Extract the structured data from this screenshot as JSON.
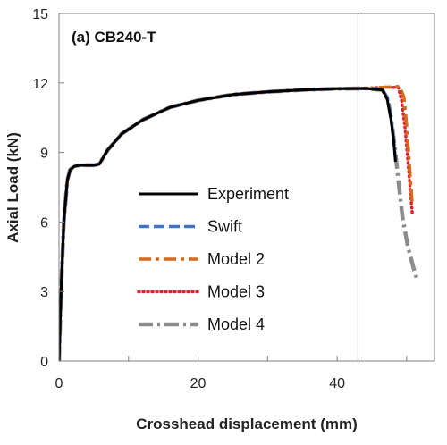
{
  "chart_data": {
    "type": "line",
    "title": "(a) CB240-T",
    "xlabel": "Crosshead displacement (mm)",
    "ylabel": "Axial Load (kN)",
    "xlim": [
      0,
      54
    ],
    "ylim": [
      0,
      15
    ],
    "xticks": [
      0,
      20,
      40
    ],
    "yticks": [
      0,
      3,
      6,
      9,
      12,
      15
    ],
    "grid": false,
    "legend_position": "bottom-center",
    "reference_line": {
      "x": 43,
      "orientation": "vertical",
      "color": "#000000"
    },
    "series": [
      {
        "name": "Experiment",
        "color": "#000000",
        "style": "solid",
        "x": [
          0,
          0.3,
          0.7,
          1.2,
          1.6,
          2.2,
          3.0,
          4.0,
          5.0,
          5.8,
          7.0,
          9.0,
          12.0,
          16.0,
          20.0,
          25.0,
          30.0,
          35.0,
          40.0,
          44.0,
          46.5,
          47.2,
          47.7,
          48.1,
          48.4
        ],
        "y": [
          0,
          3.0,
          6.0,
          7.8,
          8.25,
          8.4,
          8.45,
          8.45,
          8.45,
          8.5,
          9.1,
          9.8,
          10.4,
          10.95,
          11.25,
          11.5,
          11.62,
          11.7,
          11.75,
          11.76,
          11.7,
          11.3,
          10.5,
          9.6,
          8.6
        ]
      },
      {
        "name": "Swift",
        "color": "#4472c4",
        "style": "dashed",
        "x": [
          0,
          0.3,
          0.7,
          1.2,
          1.6,
          2.2,
          3.0,
          4.0,
          5.0,
          5.8,
          7.0,
          9.0,
          12.0,
          16.0,
          20.0,
          25.0,
          30.0,
          35.0,
          40.0,
          44.0,
          46.5,
          47.2,
          47.7,
          48.1,
          48.4
        ],
        "y": [
          0,
          3.0,
          6.0,
          7.8,
          8.25,
          8.4,
          8.45,
          8.45,
          8.45,
          8.5,
          9.1,
          9.8,
          10.4,
          10.95,
          11.25,
          11.5,
          11.62,
          11.7,
          11.75,
          11.76,
          11.72,
          11.4,
          10.6,
          9.7,
          8.7
        ]
      },
      {
        "name": "Model 2",
        "color": "#d46a1e",
        "style": "dashdot",
        "x": [
          0,
          0.3,
          0.7,
          1.2,
          1.6,
          2.2,
          3.0,
          4.0,
          5.0,
          5.8,
          7.0,
          9.0,
          12.0,
          16.0,
          20.0,
          25.0,
          30.0,
          35.0,
          40.0,
          44.0,
          47.0,
          49.0,
          49.6,
          50.0,
          50.4,
          50.8
        ],
        "y": [
          0,
          3.0,
          6.0,
          7.8,
          8.25,
          8.4,
          8.45,
          8.45,
          8.45,
          8.5,
          9.1,
          9.8,
          10.4,
          10.95,
          11.25,
          11.5,
          11.62,
          11.7,
          11.75,
          11.77,
          11.82,
          11.85,
          11.4,
          10.2,
          8.5,
          6.8
        ]
      },
      {
        "name": "Model 3",
        "color": "#e0202a",
        "style": "dotted",
        "x": [
          0,
          0.3,
          0.7,
          1.2,
          1.6,
          2.2,
          3.0,
          4.0,
          5.0,
          5.8,
          7.0,
          9.0,
          12.0,
          16.0,
          20.0,
          25.0,
          30.0,
          35.0,
          40.0,
          44.0,
          47.0,
          48.8,
          49.3,
          49.8,
          50.3,
          50.8
        ],
        "y": [
          0,
          3.0,
          6.0,
          7.8,
          8.25,
          8.4,
          8.45,
          8.45,
          8.45,
          8.5,
          9.1,
          9.8,
          10.4,
          10.95,
          11.25,
          11.5,
          11.62,
          11.7,
          11.75,
          11.77,
          11.82,
          11.8,
          11.2,
          10.0,
          8.2,
          6.4
        ]
      },
      {
        "name": "Model 4",
        "color": "#8c8c8c",
        "style": "longdashdot",
        "x": [
          0,
          0.3,
          0.7,
          1.2,
          1.6,
          2.2,
          3.0,
          4.0,
          5.0,
          5.8,
          7.0,
          9.0,
          12.0,
          16.0,
          20.0,
          25.0,
          30.0,
          35.0,
          40.0,
          44.0,
          46.5,
          47.3,
          47.8,
          48.3,
          48.8,
          49.4,
          50.2,
          51.0,
          51.5
        ],
        "y": [
          0,
          3.0,
          6.0,
          7.8,
          8.25,
          8.4,
          8.45,
          8.45,
          8.45,
          8.5,
          9.1,
          9.8,
          10.4,
          10.95,
          11.25,
          11.5,
          11.62,
          11.7,
          11.75,
          11.76,
          11.7,
          11.3,
          10.4,
          9.2,
          7.8,
          6.2,
          4.9,
          4.0,
          3.5
        ]
      }
    ]
  }
}
